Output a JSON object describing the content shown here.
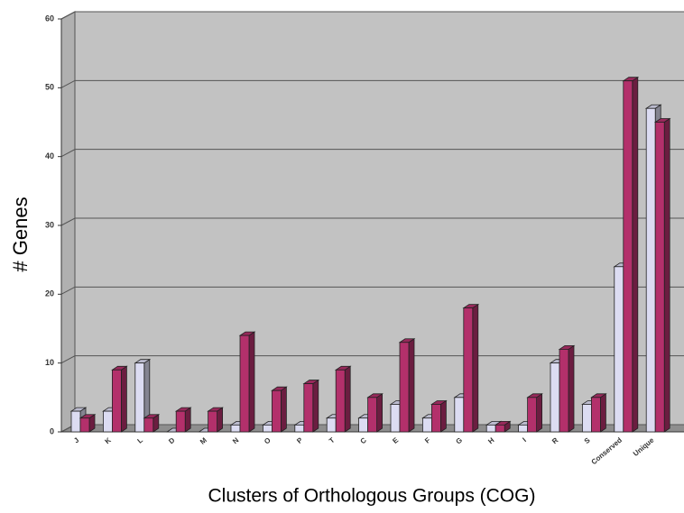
{
  "chart_data": {
    "type": "bar3d",
    "y_label": "# Genes",
    "x_label": "Clusters of Orthologous Groups (COG)",
    "categories": [
      "J",
      "K",
      "L",
      "D",
      "M",
      "N",
      "O",
      "P",
      "T",
      "C",
      "E",
      "F",
      "G",
      "H",
      "I",
      "R",
      "S",
      "Conserved",
      "Unique"
    ],
    "series": [
      {
        "color": "#dcdcf2",
        "values": [
          3,
          3,
          10,
          0,
          0,
          1,
          1,
          1,
          2,
          2,
          4,
          2,
          5,
          1,
          1,
          10,
          4,
          24,
          47
        ]
      },
      {
        "color": "#b3306b",
        "values": [
          2,
          9,
          2,
          3,
          3,
          14,
          6,
          7,
          9,
          5,
          13,
          4,
          18,
          1,
          5,
          12,
          5,
          51,
          45
        ]
      }
    ],
    "ylim": [
      0,
      60
    ],
    "yticks": [
      0,
      10,
      20,
      30,
      40,
      50,
      60
    ],
    "grid": true
  }
}
